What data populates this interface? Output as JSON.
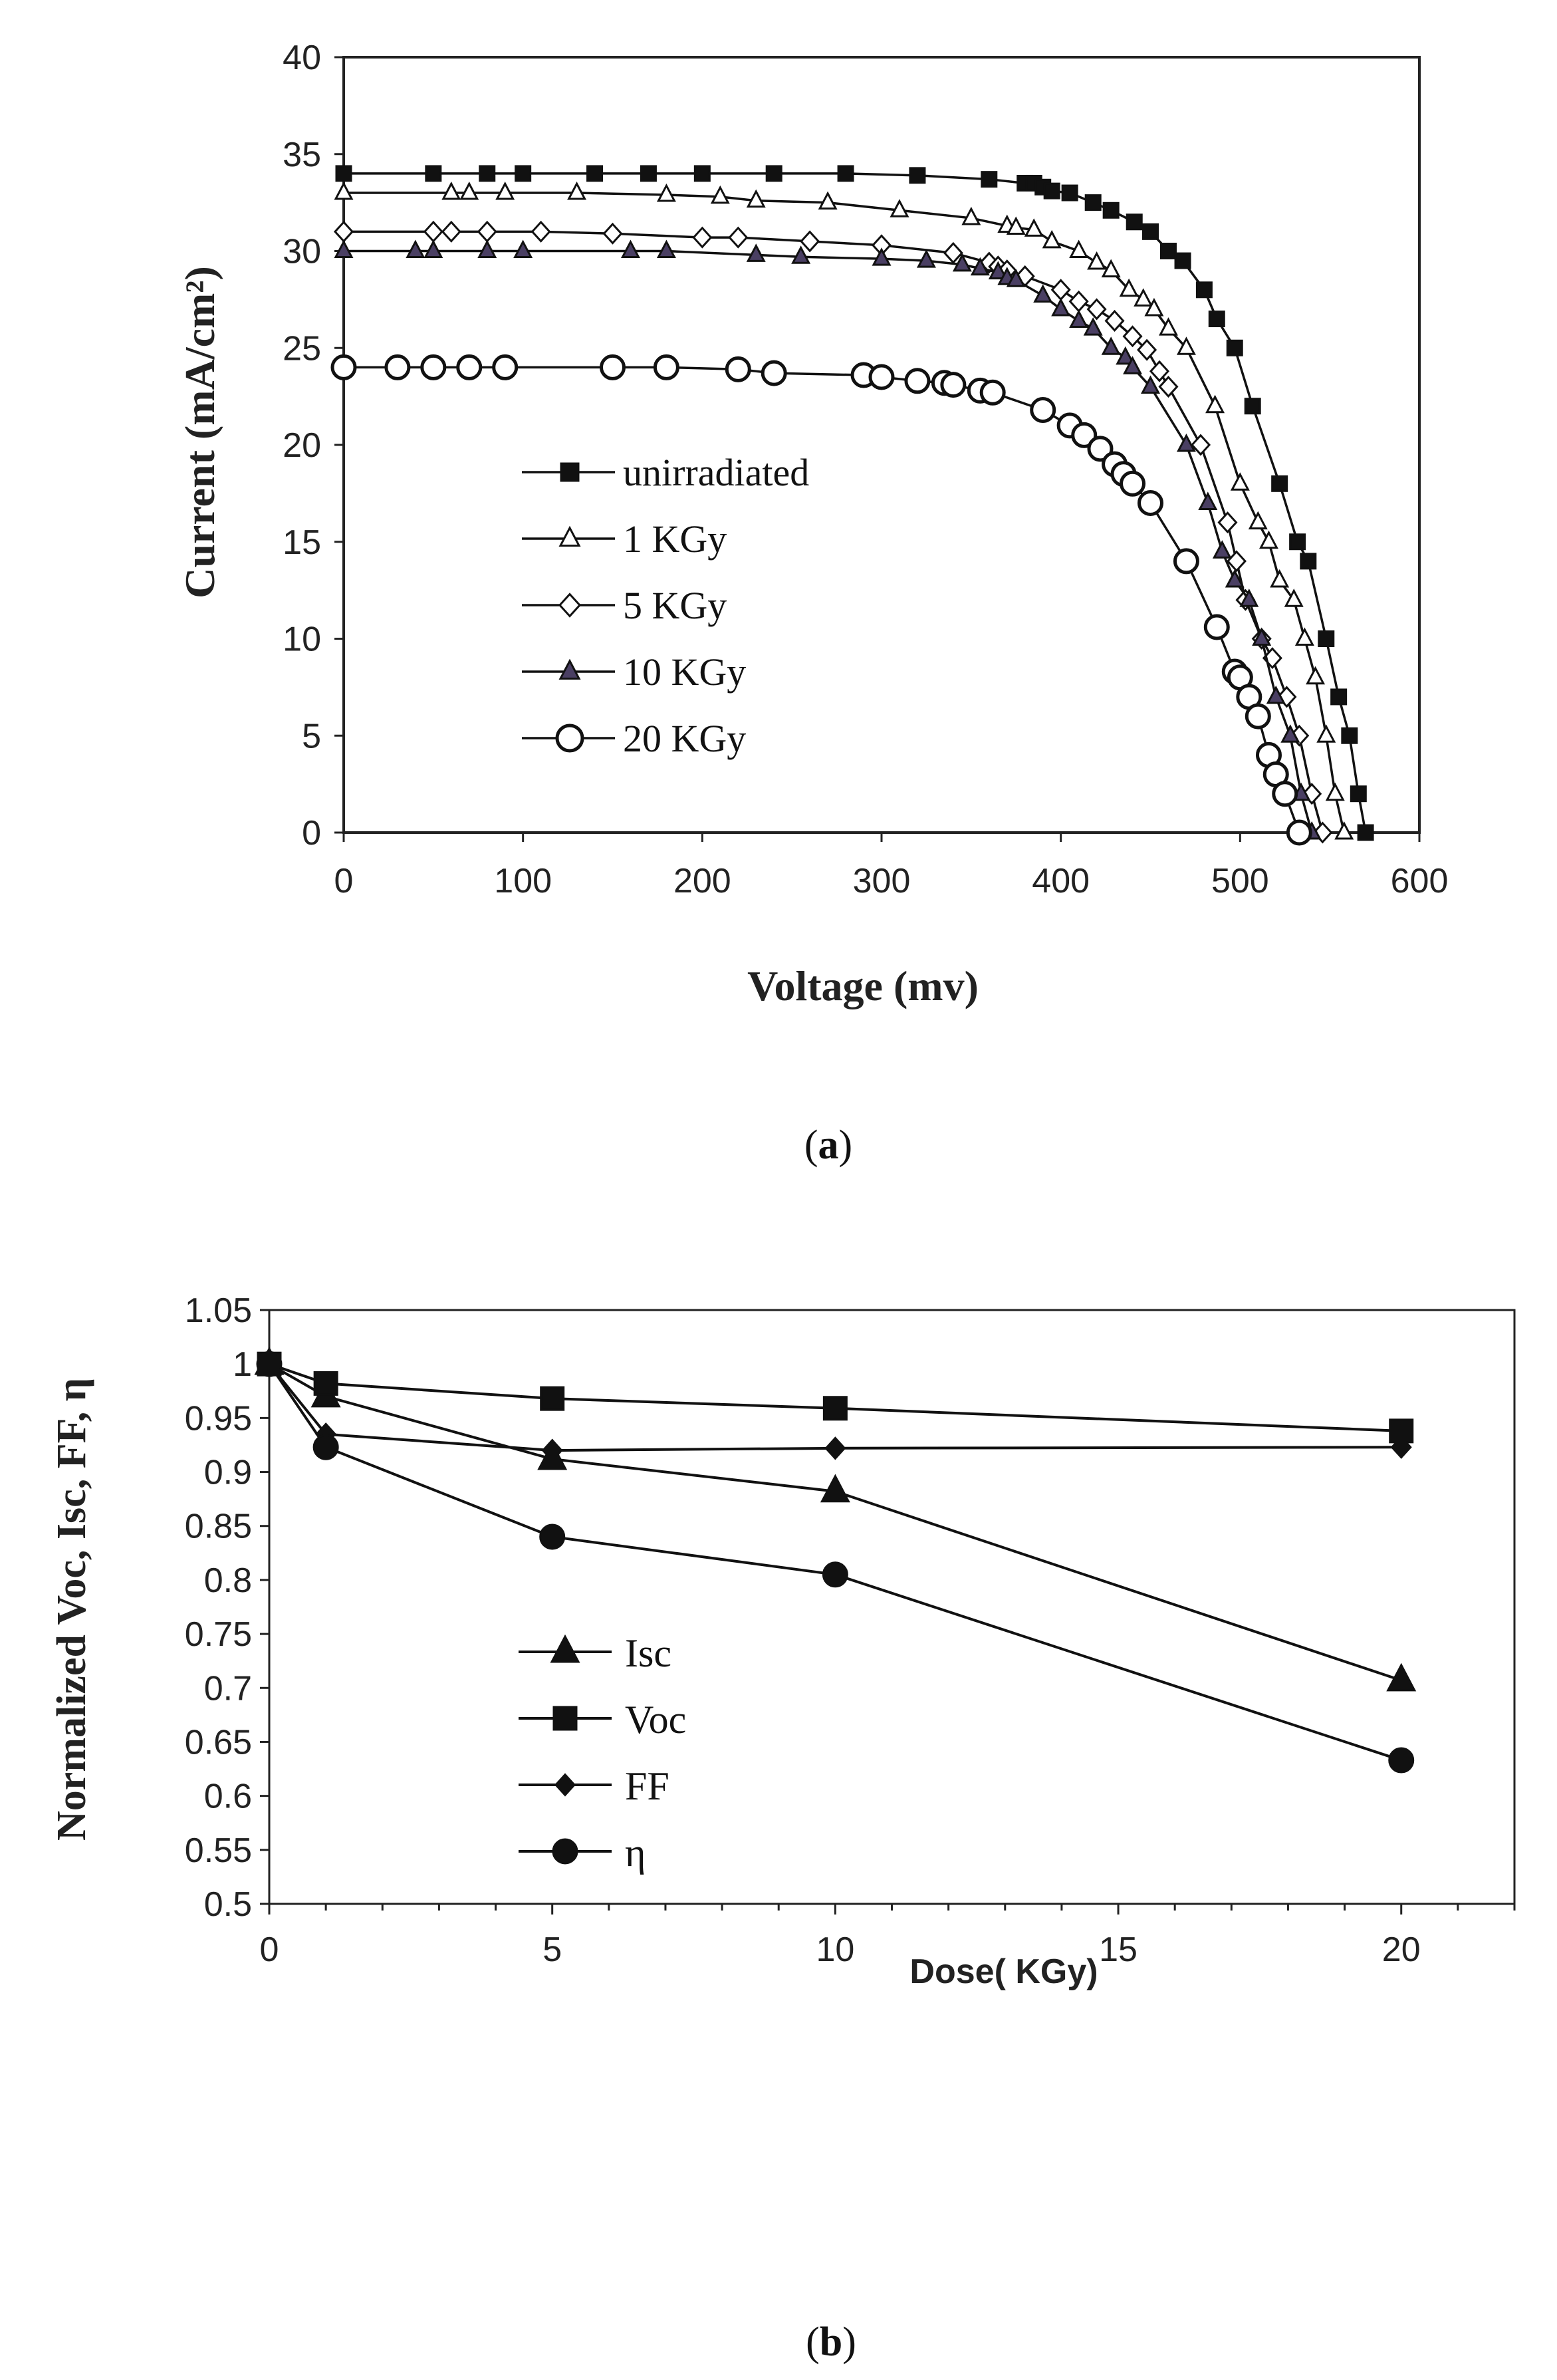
{
  "chart_data": [
    {
      "type": "line",
      "panel": "a",
      "caption": {
        "open": "(",
        "letter": "a",
        "close": ")"
      },
      "xlabel": "Voltage (mv)",
      "ylabel": "Current (mA/cm²)",
      "xlim": [
        0,
        600
      ],
      "ylim": [
        0,
        40
      ],
      "xticks": [
        0,
        100,
        200,
        300,
        400,
        500,
        600
      ],
      "yticks": [
        0,
        5,
        10,
        15,
        20,
        25,
        30,
        35,
        40
      ],
      "legend_position": "center-left",
      "series": [
        {
          "name": "unirradiated",
          "marker": "square-filled",
          "points": [
            [
              0,
              34
            ],
            [
              50,
              34
            ],
            [
              80,
              34
            ],
            [
              100,
              34
            ],
            [
              140,
              34
            ],
            [
              170,
              34
            ],
            [
              200,
              34
            ],
            [
              240,
              34
            ],
            [
              280,
              34
            ],
            [
              320,
              33.9
            ],
            [
              360,
              33.7
            ],
            [
              380,
              33.5
            ],
            [
              385,
              33.5
            ],
            [
              390,
              33.3
            ],
            [
              395,
              33.1
            ],
            [
              405,
              33
            ],
            [
              418,
              32.5
            ],
            [
              428,
              32.1
            ],
            [
              441,
              31.5
            ],
            [
              450,
              31
            ],
            [
              460,
              30
            ],
            [
              468,
              29.5
            ],
            [
              480,
              28
            ],
            [
              487,
              26.5
            ],
            [
              497,
              25
            ],
            [
              507,
              22
            ],
            [
              522,
              18
            ],
            [
              532,
              15
            ],
            [
              538,
              14
            ],
            [
              548,
              10
            ],
            [
              555,
              7
            ],
            [
              561,
              5
            ],
            [
              566,
              2
            ],
            [
              570,
              0
            ]
          ]
        },
        {
          "name": "1 KGy",
          "marker": "triangle-open",
          "points": [
            [
              0,
              33
            ],
            [
              60,
              33
            ],
            [
              70,
              33
            ],
            [
              90,
              33
            ],
            [
              130,
              33
            ],
            [
              180,
              32.9
            ],
            [
              210,
              32.8
            ],
            [
              230,
              32.6
            ],
            [
              270,
              32.5
            ],
            [
              310,
              32.1
            ],
            [
              350,
              31.7
            ],
            [
              370,
              31.3
            ],
            [
              375,
              31.2
            ],
            [
              385,
              31.1
            ],
            [
              395,
              30.5
            ],
            [
              410,
              30
            ],
            [
              420,
              29.4
            ],
            [
              428,
              29
            ],
            [
              438,
              28
            ],
            [
              446,
              27.5
            ],
            [
              452,
              27
            ],
            [
              460,
              26
            ],
            [
              470,
              25
            ],
            [
              486,
              22
            ],
            [
              500,
              18
            ],
            [
              510,
              16
            ],
            [
              516,
              15
            ],
            [
              522,
              13
            ],
            [
              530,
              12
            ],
            [
              536,
              10
            ],
            [
              542,
              8
            ],
            [
              548,
              5
            ],
            [
              553,
              2
            ],
            [
              558,
              0
            ]
          ]
        },
        {
          "name": "5 KGy",
          "marker": "diamond-open",
          "points": [
            [
              0,
              31
            ],
            [
              50,
              31
            ],
            [
              60,
              31
            ],
            [
              80,
              31
            ],
            [
              110,
              31
            ],
            [
              150,
              30.9
            ],
            [
              200,
              30.7
            ],
            [
              220,
              30.7
            ],
            [
              260,
              30.5
            ],
            [
              300,
              30.3
            ],
            [
              340,
              29.9
            ],
            [
              360,
              29.4
            ],
            [
              365,
              29.2
            ],
            [
              370,
              29
            ],
            [
              380,
              28.7
            ],
            [
              400,
              28
            ],
            [
              410,
              27.4
            ],
            [
              420,
              27
            ],
            [
              430,
              26.4
            ],
            [
              440,
              25.6
            ],
            [
              448,
              24.9
            ],
            [
              455,
              23.8
            ],
            [
              460,
              23
            ],
            [
              478,
              20
            ],
            [
              493,
              16
            ],
            [
              498,
              14
            ],
            [
              503,
              12
            ],
            [
              512,
              10
            ],
            [
              518,
              9
            ],
            [
              526,
              7
            ],
            [
              533,
              5
            ],
            [
              540,
              2
            ],
            [
              546,
              0
            ]
          ]
        },
        {
          "name": "10 KGy",
          "marker": "triangle-filled",
          "points": [
            [
              0,
              30
            ],
            [
              40,
              30
            ],
            [
              50,
              30
            ],
            [
              80,
              30
            ],
            [
              100,
              30
            ],
            [
              160,
              30
            ],
            [
              180,
              30
            ],
            [
              230,
              29.8
            ],
            [
              255,
              29.7
            ],
            [
              300,
              29.6
            ],
            [
              325,
              29.5
            ],
            [
              345,
              29.3
            ],
            [
              355,
              29.1
            ],
            [
              365,
              28.9
            ],
            [
              370,
              28.6
            ],
            [
              375,
              28.5
            ],
            [
              390,
              27.7
            ],
            [
              400,
              27
            ],
            [
              410,
              26.4
            ],
            [
              418,
              26
            ],
            [
              428,
              25
            ],
            [
              436,
              24.5
            ],
            [
              440,
              24
            ],
            [
              450,
              23
            ],
            [
              470,
              20
            ],
            [
              482,
              17
            ],
            [
              490,
              14.5
            ],
            [
              497,
              13
            ],
            [
              505,
              12
            ],
            [
              512,
              10
            ],
            [
              520,
              7
            ],
            [
              528,
              5
            ],
            [
              534,
              2
            ],
            [
              540,
              0
            ]
          ]
        },
        {
          "name": "20 KGy",
          "marker": "circle-open",
          "points": [
            [
              0,
              24
            ],
            [
              30,
              24
            ],
            [
              50,
              24
            ],
            [
              70,
              24
            ],
            [
              90,
              24
            ],
            [
              150,
              24
            ],
            [
              180,
              24
            ],
            [
              220,
              23.9
            ],
            [
              240,
              23.7
            ],
            [
              290,
              23.6
            ],
            [
              300,
              23.5
            ],
            [
              320,
              23.3
            ],
            [
              335,
              23.2
            ],
            [
              340,
              23.1
            ],
            [
              355,
              22.8
            ],
            [
              362,
              22.7
            ],
            [
              390,
              21.8
            ],
            [
              405,
              21
            ],
            [
              413,
              20.5
            ],
            [
              422,
              19.8
            ],
            [
              430,
              19
            ],
            [
              435,
              18.5
            ],
            [
              440,
              18
            ],
            [
              450,
              17
            ],
            [
              470,
              14
            ],
            [
              487,
              10.6
            ],
            [
              497,
              8.3
            ],
            [
              500,
              8
            ],
            [
              505,
              7
            ],
            [
              510,
              6
            ],
            [
              516,
              4
            ],
            [
              520,
              3
            ],
            [
              525,
              2
            ],
            [
              533,
              0
            ]
          ]
        }
      ]
    },
    {
      "type": "line",
      "panel": "b",
      "caption": {
        "open": "(",
        "letter": "b",
        "close": ")"
      },
      "xlabel": "Dose( KGy)",
      "ylabel": "Normalized Voc, Isc, FF, η",
      "xlim": [
        0,
        22
      ],
      "ylim": [
        0.5,
        1.05
      ],
      "xticks": [
        0,
        5,
        10,
        15,
        20
      ],
      "yticks": [
        0.5,
        0.55,
        0.6,
        0.65,
        0.7,
        0.75,
        0.8,
        0.85,
        0.9,
        0.95,
        1,
        1.05
      ],
      "ytick_labels": [
        "0.5",
        "0.55",
        "0.6",
        "0.65",
        "0.7",
        "0.75",
        "0.8",
        "0.85",
        "0.9",
        "0.95",
        "1",
        "1.05"
      ],
      "xtick_labels": [
        "0",
        "5",
        "10",
        "15",
        "20"
      ],
      "legend_position": "center-left",
      "series": [
        {
          "name": "Isc",
          "marker": "triangle-filled",
          "points": [
            [
              0,
              1
            ],
            [
              1,
              0.97
            ],
            [
              5,
              0.912
            ],
            [
              10,
              0.882
            ],
            [
              20,
              0.707
            ]
          ]
        },
        {
          "name": "Voc",
          "marker": "square-filled",
          "points": [
            [
              0,
              1
            ],
            [
              1,
              0.982
            ],
            [
              5,
              0.968
            ],
            [
              10,
              0.959
            ],
            [
              20,
              0.938
            ]
          ]
        },
        {
          "name": "FF",
          "marker": "diamond-filled",
          "points": [
            [
              0,
              1
            ],
            [
              1,
              0.935
            ],
            [
              5,
              0.92
            ],
            [
              10,
              0.922
            ],
            [
              20,
              0.923
            ]
          ]
        },
        {
          "name": "η",
          "marker": "circle-filled",
          "points": [
            [
              0,
              1
            ],
            [
              1,
              0.923
            ],
            [
              5,
              0.84
            ],
            [
              10,
              0.805
            ],
            [
              20,
              0.633
            ]
          ]
        }
      ]
    }
  ]
}
